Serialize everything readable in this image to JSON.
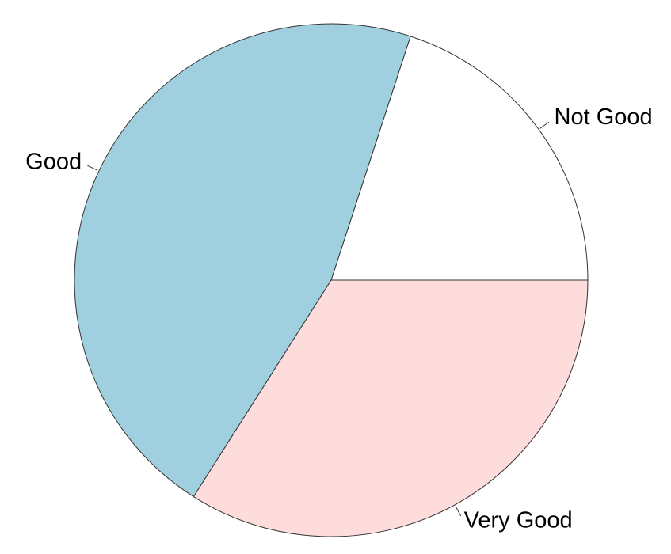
{
  "chart_data": {
    "type": "pie",
    "title": "",
    "categories": [
      "Not Good",
      "Good",
      "Very Good"
    ],
    "values": [
      20,
      46,
      34
    ],
    "colors": [
      "#ffffff",
      "#a0cfe0",
      "#fddcdb"
    ],
    "start_angle_deg": 0,
    "direction": "counterclockwise",
    "legend": "none",
    "labels_outside": true
  }
}
